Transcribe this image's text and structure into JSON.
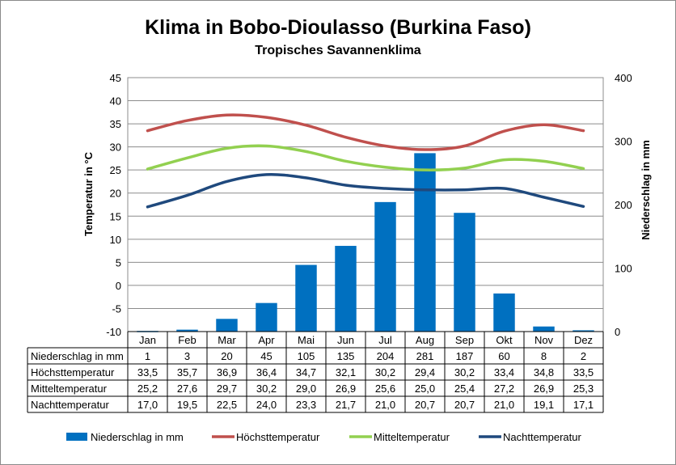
{
  "chart_data": {
    "type": "bar+line",
    "title": "Klima in Bobo-Dioulasso (Burkina Faso)",
    "subtitle": "Tropisches Savannenklima",
    "ylabel_left": "Temperatur in °C",
    "ylabel_right": "Niederschlag in mm",
    "ylim_left": [
      -10,
      45
    ],
    "ylim_right": [
      0,
      400
    ],
    "yticks_left": [
      "45",
      "40",
      "35",
      "30",
      "25",
      "20",
      "15",
      "10",
      "5",
      "0",
      "-5",
      "-10"
    ],
    "yticks_right": [
      "400",
      "300",
      "200",
      "100",
      "0"
    ],
    "categories": [
      "Jan",
      "Feb",
      "Mar",
      "Apr",
      "Mai",
      "Jun",
      "Jul",
      "Aug",
      "Sep",
      "Okt",
      "Nov",
      "Dez"
    ],
    "grid": true,
    "legend_position": "bottom",
    "series": [
      {
        "name": "Niederschlag in mm",
        "kind": "bar",
        "axis": "right",
        "color": "#0070c0",
        "values": [
          1,
          3,
          20,
          45,
          105,
          135,
          204,
          281,
          187,
          60,
          8,
          2
        ],
        "labels": [
          "1",
          "3",
          "20",
          "45",
          "105",
          "135",
          "204",
          "281",
          "187",
          "60",
          "8",
          "2"
        ]
      },
      {
        "name": "Höchsttemperatur",
        "kind": "line",
        "axis": "left",
        "color": "#c0504d",
        "values": [
          33.5,
          35.7,
          36.9,
          36.4,
          34.7,
          32.1,
          30.2,
          29.4,
          30.2,
          33.4,
          34.8,
          33.5
        ],
        "labels": [
          "33,5",
          "35,7",
          "36,9",
          "36,4",
          "34,7",
          "32,1",
          "30,2",
          "29,4",
          "30,2",
          "33,4",
          "34,8",
          "33,5"
        ]
      },
      {
        "name": "Mitteltemperatur",
        "kind": "line",
        "axis": "left",
        "color": "#92d050",
        "values": [
          25.2,
          27.6,
          29.7,
          30.2,
          29.0,
          26.9,
          25.6,
          25.0,
          25.4,
          27.2,
          26.9,
          25.3
        ],
        "labels": [
          "25,2",
          "27,6",
          "29,7",
          "30,2",
          "29,0",
          "26,9",
          "25,6",
          "25,0",
          "25,4",
          "27,2",
          "26,9",
          "25,3"
        ]
      },
      {
        "name": "Nachttemperatur",
        "kind": "line",
        "axis": "left",
        "color": "#1f497d",
        "values": [
          17.0,
          19.5,
          22.5,
          24.0,
          23.3,
          21.7,
          21.0,
          20.7,
          20.7,
          21.0,
          19.1,
          17.1
        ],
        "labels": [
          "17,0",
          "19,5",
          "22,5",
          "24,0",
          "23,3",
          "21,7",
          "21,0",
          "20,7",
          "20,7",
          "21,0",
          "19,1",
          "17,1"
        ]
      }
    ]
  }
}
